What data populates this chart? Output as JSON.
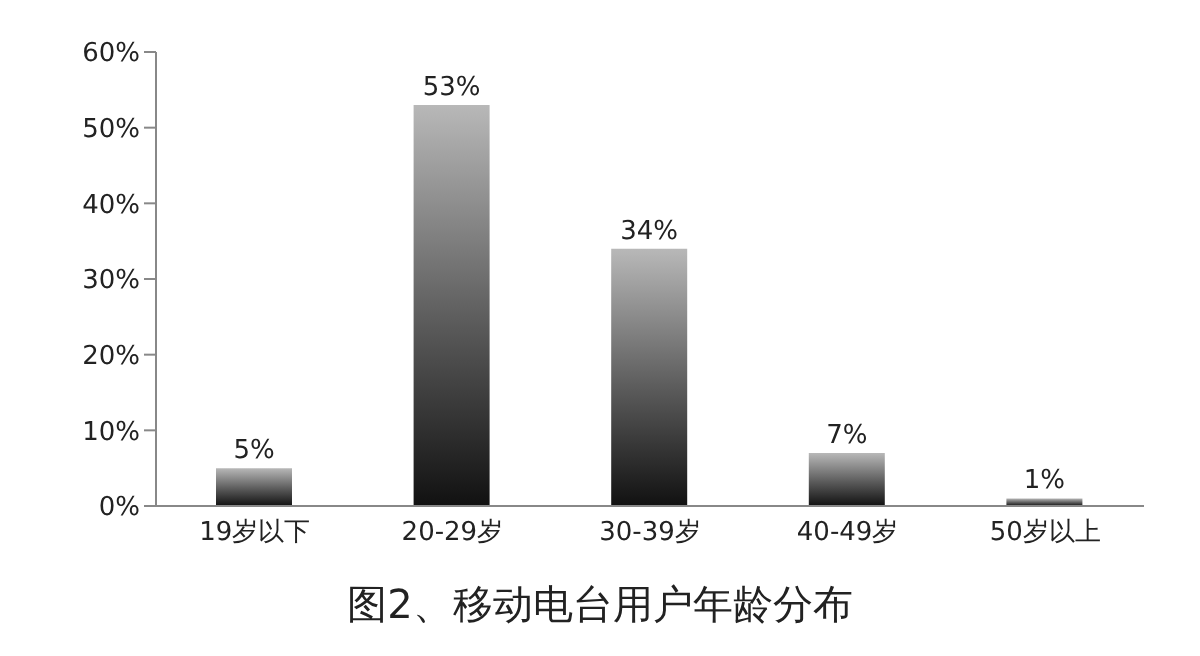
{
  "chart_data": {
    "type": "bar",
    "title": "图2、移动电台用户年龄分布",
    "categories": [
      "19岁以下",
      "20-29岁",
      "30-39岁",
      "40-49岁",
      "50岁以上"
    ],
    "values": [
      5,
      53,
      34,
      7,
      1
    ],
    "value_labels": [
      "5%",
      "53%",
      "34%",
      "7%",
      "1%"
    ],
    "color": "#5a5a5a",
    "ylim": [
      0,
      60
    ],
    "yticks": [
      {
        "value": 0,
        "label": "0%"
      },
      {
        "value": 10,
        "label": "10%"
      },
      {
        "value": 20,
        "label": "20%"
      },
      {
        "value": 30,
        "label": "30%"
      },
      {
        "value": 40,
        "label": "40%"
      },
      {
        "value": 50,
        "label": "50%"
      },
      {
        "value": 60,
        "label": "60%"
      }
    ],
    "grid": false,
    "legend": false
  }
}
